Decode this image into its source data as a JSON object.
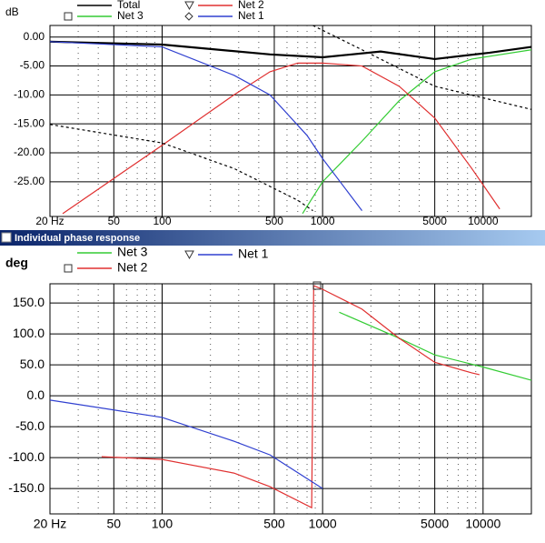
{
  "window_title": "Individual phase response",
  "chart_data": [
    {
      "type": "line",
      "ylabel": "dB",
      "xscale": "log",
      "xlim": [
        20,
        20000
      ],
      "ylim": [
        -31,
        2
      ],
      "xticks": [
        {
          "value": 20,
          "label": "20 Hz"
        },
        50,
        100,
        500,
        1000,
        5000,
        10000
      ],
      "xminorticks": [
        30,
        40,
        60,
        70,
        80,
        90,
        200,
        300,
        400,
        600,
        700,
        800,
        900,
        2000,
        3000,
        4000,
        6000,
        7000,
        8000,
        9000
      ],
      "yticks": [
        {
          "value": 0,
          "label": "0.00"
        },
        {
          "value": -5,
          "label": "-5.00"
        },
        {
          "value": -10,
          "label": "-10.00"
        },
        {
          "value": -15,
          "label": "-15.00"
        },
        {
          "value": -20,
          "label": "-20.00"
        },
        {
          "value": -25,
          "label": "-25.00"
        }
      ],
      "series": [
        {
          "name": "Total",
          "color": "#000000",
          "x": [
            20,
            100,
            470,
            1000,
            2300,
            5000,
            11000,
            20000
          ],
          "values": [
            -0.8,
            -1.3,
            -3,
            -3.5,
            -2.5,
            -3.8,
            -2.7,
            -1.7
          ]
        },
        {
          "name": "Net 3",
          "color": "#33cc33",
          "x": [
            750,
            1000,
            1760,
            3000,
            5000,
            8500,
            20000
          ],
          "values": [
            -30.5,
            -25,
            -18,
            -11,
            -6,
            -3.8,
            -2.2
          ]
        },
        {
          "name": "Net 2",
          "color": "#e03030",
          "x": [
            24,
            100,
            280,
            470,
            700,
            1000,
            1760,
            3000,
            5000,
            8500,
            12700
          ],
          "values": [
            -30.5,
            -18.7,
            -10,
            -6,
            -4.5,
            -4.5,
            -5,
            -8.5,
            -14,
            -22.7,
            -29.7
          ]
        },
        {
          "name": "Net 1",
          "color": "#3040d0",
          "x": [
            20,
            100,
            280,
            470,
            800,
            1000,
            1760
          ],
          "values": [
            -0.8,
            -1.7,
            -6.6,
            -10,
            -17,
            -21,
            -30
          ]
        },
        {
          "color": "#000000",
          "dash": true,
          "x": [
            20,
            100,
            280,
            700,
            870
          ],
          "values": [
            -15.1,
            -18.3,
            -22.7,
            -28.2,
            -30
          ]
        },
        {
          "color": "#000000",
          "dash": true,
          "x": [
            870,
            1760,
            5000,
            20000
          ],
          "values": [
            2,
            -2.2,
            -8.5,
            -12.5
          ]
        }
      ]
    },
    {
      "type": "line",
      "ylabel": "deg",
      "xscale": "log",
      "xlim": [
        20,
        20000
      ],
      "ylim": [
        -191,
        181
      ],
      "xticks": [
        {
          "value": 20,
          "label": "20 Hz"
        },
        50,
        100,
        500,
        1000,
        5000,
        10000
      ],
      "xminorticks": [
        30,
        40,
        60,
        70,
        80,
        90,
        200,
        300,
        400,
        600,
        700,
        800,
        900,
        2000,
        3000,
        4000,
        6000,
        7000,
        8000,
        9000
      ],
      "yticks": [
        {
          "value": 150,
          "label": "150.0"
        },
        {
          "value": 100,
          "label": "100.0"
        },
        {
          "value": 50,
          "label": "50.0"
        },
        {
          "value": 0,
          "label": "0.0"
        },
        {
          "value": -50,
          "label": "-50.0"
        },
        {
          "value": -100,
          "label": "-100.0"
        },
        {
          "value": -150,
          "label": "-150.0"
        }
      ],
      "series": [
        {
          "name": "Net 3",
          "color": "#33cc33",
          "x": [
            1270,
            3000,
            5000,
            9800,
            20000
          ],
          "values": [
            135,
            93,
            66,
            47,
            25
          ]
        },
        {
          "name": "Net 2",
          "color": "#e03030",
          "x": [
            42,
            100,
            280,
            470,
            855,
            880,
            1000,
            1760,
            3000,
            5000,
            8500,
            9500
          ],
          "values": [
            -98.5,
            -103,
            -125,
            -147,
            -181,
            178,
            172,
            140,
            93,
            54,
            37,
            34
          ]
        },
        {
          "name": "Net 1",
          "color": "#3040d0",
          "x": [
            20,
            100,
            280,
            470,
            1000
          ],
          "values": [
            -7,
            -35,
            -73.5,
            -95.6,
            -150
          ]
        }
      ]
    }
  ]
}
